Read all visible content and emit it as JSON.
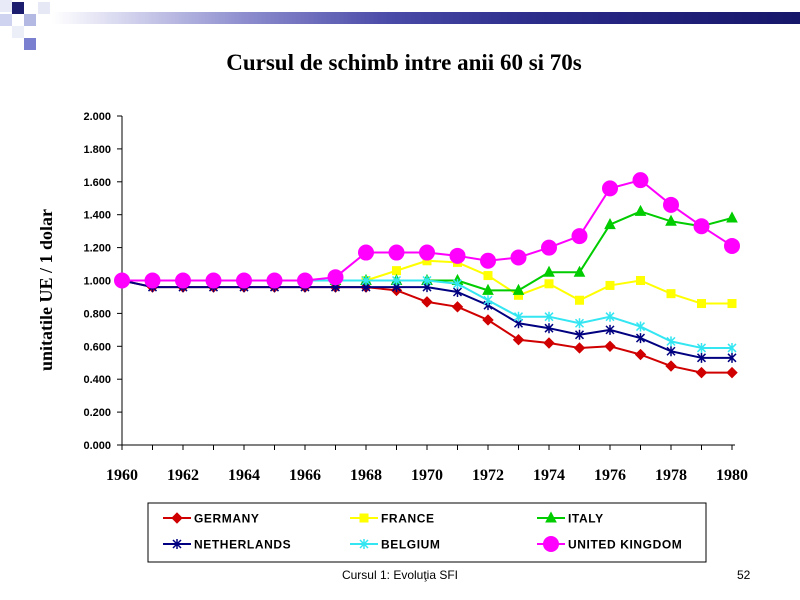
{
  "slide": {
    "footer": "Cursul 1: Evoluţia SFI",
    "page_number": "52"
  },
  "chart_data": {
    "type": "line",
    "title": "Cursul de schimb intre anii 60 si 70s",
    "ylabel": "unitatile UE / 1 dolar",
    "x": [
      1960,
      1961,
      1962,
      1963,
      1964,
      1965,
      1966,
      1967,
      1968,
      1969,
      1970,
      1971,
      1972,
      1973,
      1974,
      1975,
      1976,
      1977,
      1978,
      1979,
      1980
    ],
    "xlim": [
      1960,
      1980
    ],
    "ylim": [
      0,
      2
    ],
    "x_tick_labels": [
      "1960",
      "1962",
      "1964",
      "1966",
      "1968",
      "1970",
      "1972",
      "1974",
      "1976",
      "1978",
      "1980"
    ],
    "y_tick_labels": [
      "0.000",
      "0.200",
      "0.400",
      "0.600",
      "0.800",
      "1.000",
      "1.200",
      "1.400",
      "1.600",
      "1.800",
      "2.000"
    ],
    "grid": false,
    "legend_position": "bottom",
    "series": [
      {
        "name": "GERMANY",
        "color": "#d00000",
        "marker": "diamond",
        "values": [
          1.0,
          0.96,
          0.96,
          0.96,
          0.96,
          0.96,
          0.96,
          0.96,
          0.96,
          0.94,
          0.87,
          0.84,
          0.76,
          0.64,
          0.62,
          0.59,
          0.6,
          0.55,
          0.48,
          0.44,
          0.44
        ]
      },
      {
        "name": "FRANCE",
        "color": "#ffff00",
        "marker": "square",
        "values": [
          1.0,
          1.0,
          1.0,
          1.0,
          1.0,
          1.0,
          1.0,
          1.0,
          1.0,
          1.06,
          1.12,
          1.11,
          1.03,
          0.91,
          0.98,
          0.88,
          0.97,
          1.0,
          0.92,
          0.86,
          0.86
        ]
      },
      {
        "name": "ITALY",
        "color": "#00cc00",
        "marker": "triangle",
        "values": [
          1.0,
          1.0,
          1.0,
          1.0,
          1.0,
          1.0,
          1.0,
          1.0,
          1.0,
          1.0,
          1.0,
          1.0,
          0.94,
          0.94,
          1.05,
          1.05,
          1.34,
          1.42,
          1.36,
          1.33,
          1.38
        ]
      },
      {
        "name": "NETHERLANDS",
        "color": "#000080",
        "marker": "asterisk",
        "values": [
          1.0,
          0.96,
          0.96,
          0.96,
          0.96,
          0.96,
          0.96,
          0.96,
          0.96,
          0.96,
          0.96,
          0.93,
          0.85,
          0.74,
          0.71,
          0.67,
          0.7,
          0.65,
          0.57,
          0.53,
          0.53
        ]
      },
      {
        "name": "BELGIUM",
        "color": "#33e6f2",
        "marker": "asterisk",
        "values": [
          1.0,
          1.0,
          1.0,
          1.0,
          1.0,
          1.0,
          1.0,
          1.0,
          1.0,
          1.0,
          1.0,
          0.98,
          0.88,
          0.78,
          0.78,
          0.74,
          0.78,
          0.72,
          0.63,
          0.59,
          0.59
        ]
      },
      {
        "name": "UNITED KINGDOM",
        "color": "#ff00ff",
        "marker": "circle",
        "values": [
          1.0,
          1.0,
          1.0,
          1.0,
          1.0,
          1.0,
          1.0,
          1.02,
          1.17,
          1.17,
          1.17,
          1.15,
          1.12,
          1.14,
          1.2,
          1.27,
          1.56,
          1.61,
          1.46,
          1.33,
          1.21
        ]
      }
    ]
  }
}
